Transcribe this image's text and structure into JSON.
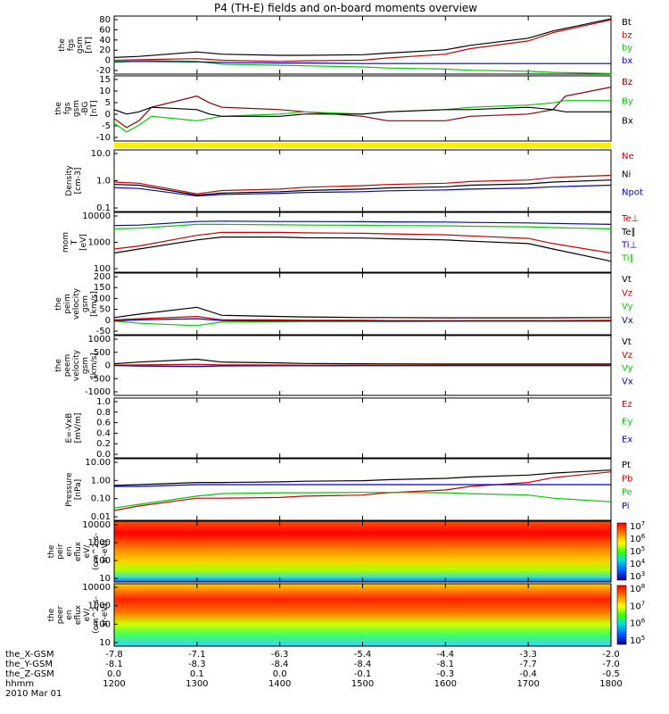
{
  "title": "P4 (TH-E) fields and on-board moments overview",
  "colors": {
    "black": "#000000",
    "red": "#cc0000",
    "green": "#00cc00",
    "blue": "#0000cc",
    "yellow": "#ffee00",
    "darkred": "#8b0000"
  },
  "chart_data": [
    {
      "id": "fgs-gsm",
      "type": "line",
      "ylabel": [
        "the",
        "fgs",
        "gsm",
        "[nT]"
      ],
      "yticks": [
        "80",
        "60",
        "40",
        "20",
        "0",
        "-20"
      ],
      "ylim": [
        -20,
        85
      ],
      "x": [
        1200,
        1230,
        1300,
        1330,
        1400,
        1430,
        1500,
        1530,
        1600,
        1630,
        1700,
        1730,
        1800
      ],
      "series": [
        {
          "name": "Bt",
          "color": "#000000",
          "values": [
            10,
            12,
            20,
            16,
            14,
            14,
            15,
            18,
            24,
            32,
            45,
            58,
            80
          ]
        },
        {
          "name": "bz",
          "color": "#cc0000",
          "values": [
            5,
            6,
            8,
            5,
            3,
            4,
            5,
            9,
            16,
            26,
            40,
            55,
            78
          ]
        },
        {
          "name": "by",
          "color": "#00cc00",
          "values": [
            4,
            5,
            3,
            -2,
            -4,
            -5,
            -7,
            -9,
            -11,
            -13,
            -15,
            -17,
            -19
          ]
        },
        {
          "name": "bx",
          "color": "#0000cc",
          "values": [
            2,
            3,
            2,
            1,
            0,
            0,
            -1,
            -1,
            -1,
            -1,
            -1,
            -1,
            -1
          ]
        }
      ]
    },
    {
      "id": "fgs-gsm-zoom",
      "type": "line",
      "ylabel": [
        "the",
        "fgs",
        "gsm",
        "-BG",
        "[nT]"
      ],
      "yticks": [
        "15",
        "10",
        "5",
        "0",
        "-5",
        "-10"
      ],
      "ylim": [
        -12,
        17
      ],
      "x": [
        1200,
        1215,
        1230,
        1245,
        1300,
        1315,
        1330,
        1400,
        1430,
        1500,
        1530,
        1600,
        1630,
        1700,
        1730,
        1745,
        1800
      ],
      "series": [
        {
          "name": "Bz",
          "color": "#8b0000",
          "values": [
            -2,
            -6,
            -3,
            3,
            8,
            5,
            3,
            2,
            1,
            -1,
            -3,
            -3,
            -1,
            0,
            2,
            8,
            12
          ]
        },
        {
          "name": "By",
          "color": "#00cc00",
          "values": [
            -4,
            -8,
            -5,
            -1,
            -3,
            -2,
            -1,
            0,
            1,
            0,
            1,
            2,
            3,
            4,
            5,
            6,
            6
          ]
        },
        {
          "name": "Bx",
          "color": "#000000",
          "values": [
            2,
            0,
            1,
            3,
            2,
            0,
            -1,
            -1,
            0,
            0,
            1,
            2,
            2,
            3,
            2,
            1,
            1
          ]
        }
      ]
    },
    {
      "id": "density",
      "type": "line",
      "log": true,
      "ylabel": [
        "Density",
        "[cm-3]"
      ],
      "yticks": [
        "10.0",
        "1.0",
        "0.1"
      ],
      "ylim": [
        0.1,
        15
      ],
      "x": [
        1200,
        1230,
        1300,
        1330,
        1400,
        1430,
        1500,
        1530,
        1600,
        1630,
        1700,
        1730,
        1800
      ],
      "series": [
        {
          "name": "Ne",
          "color": "#cc0000",
          "values": [
            1.1,
            1.0,
            0.42,
            0.55,
            0.62,
            0.72,
            0.82,
            0.9,
            1.0,
            1.15,
            1.3,
            1.6,
            1.9
          ]
        },
        {
          "name": "Ni",
          "color": "#000000",
          "values": [
            0.9,
            0.85,
            0.38,
            0.45,
            0.5,
            0.55,
            0.62,
            0.68,
            0.75,
            0.85,
            0.95,
            1.1,
            1.3
          ]
        },
        {
          "name": "Npot",
          "color": "#0000cc",
          "values": [
            0.7,
            0.65,
            0.35,
            0.4,
            0.44,
            0.47,
            0.5,
            0.54,
            0.58,
            0.62,
            0.68,
            0.75,
            0.85
          ]
        }
      ]
    },
    {
      "id": "temperature",
      "type": "line",
      "log": true,
      "ylabel": [
        "mom",
        "T",
        "[eV]"
      ],
      "yticks": [
        "10000",
        "1000",
        "100"
      ],
      "ylim": [
        100,
        15000
      ],
      "x": [
        1200,
        1230,
        1300,
        1330,
        1400,
        1430,
        1500,
        1530,
        1600,
        1630,
        1700,
        1730,
        1800
      ],
      "series": [
        {
          "name": "Te⊥",
          "color": "#cc0000",
          "values": [
            700,
            900,
            2200,
            2800,
            2800,
            2700,
            2600,
            2500,
            2300,
            2100,
            1700,
            1100,
            500
          ]
        },
        {
          "name": "Te∥",
          "color": "#000000",
          "values": [
            500,
            700,
            1500,
            1900,
            1900,
            1800,
            1750,
            1650,
            1500,
            1350,
            1100,
            700,
            250
          ]
        },
        {
          "name": "Ti⊥",
          "color": "#0000cc",
          "values": [
            5000,
            5200,
            7000,
            7200,
            7000,
            7000,
            6900,
            6800,
            6700,
            6500,
            6200,
            6000,
            5500
          ]
        },
        {
          "name": "Ti∥",
          "color": "#00cc00",
          "values": [
            3800,
            4000,
            5500,
            5500,
            5300,
            5200,
            5100,
            5000,
            4900,
            4700,
            4500,
            4200,
            3800
          ]
        }
      ]
    },
    {
      "id": "peim-velocity",
      "type": "line",
      "ylabel": [
        "the",
        "peim",
        "velocity",
        "gsm",
        "[km/s]"
      ],
      "yticks": [
        "200",
        "150",
        "100",
        "50",
        "0",
        "-50"
      ],
      "ylim": [
        -60,
        210
      ],
      "x": [
        1200,
        1230,
        1300,
        1330,
        1400,
        1430,
        1500,
        1530,
        1600,
        1630,
        1700,
        1730,
        1800
      ],
      "series": [
        {
          "name": "Vt",
          "color": "#000000",
          "values": [
            15,
            30,
            60,
            25,
            20,
            18,
            15,
            15,
            14,
            14,
            14,
            14,
            15
          ]
        },
        {
          "name": "Vz",
          "color": "#cc0000",
          "values": [
            5,
            10,
            20,
            5,
            5,
            3,
            3,
            2,
            2,
            2,
            2,
            2,
            3
          ]
        },
        {
          "name": "Vy",
          "color": "#00cc00",
          "values": [
            0,
            -10,
            -20,
            -5,
            -3,
            -2,
            -2,
            -2,
            -1,
            -1,
            -1,
            -1,
            -1
          ]
        },
        {
          "name": "Vx",
          "color": "#0000cc",
          "values": [
            0,
            5,
            10,
            2,
            0,
            0,
            0,
            -1,
            -1,
            0,
            0,
            0,
            0
          ]
        }
      ]
    },
    {
      "id": "peem-velocity",
      "type": "line",
      "ylabel": [
        "the",
        "peem",
        "velocity",
        "gsm",
        "[km/s]"
      ],
      "yticks": [
        "1000",
        "500",
        "0",
        "-500",
        "-1000"
      ],
      "ylim": [
        -1050,
        1050
      ],
      "x": [
        1200,
        1230,
        1300,
        1330,
        1400,
        1430,
        1500,
        1530,
        1600,
        1630,
        1700,
        1730,
        1800
      ],
      "series": [
        {
          "name": "Vt",
          "color": "#000000",
          "values": [
            60,
            120,
            220,
            120,
            90,
            70,
            60,
            55,
            50,
            50,
            50,
            50,
            50
          ]
        },
        {
          "name": "Vz",
          "color": "#cc0000",
          "values": [
            10,
            20,
            40,
            20,
            15,
            10,
            10,
            10,
            10,
            10,
            10,
            10,
            10
          ]
        },
        {
          "name": "Vy",
          "color": "#00cc00",
          "values": [
            0,
            -10,
            -20,
            -10,
            -5,
            -5,
            -5,
            -5,
            -5,
            -5,
            -5,
            -5,
            -5
          ]
        },
        {
          "name": "Vx",
          "color": "#0000cc",
          "values": [
            0,
            -20,
            -40,
            -15,
            -10,
            -8,
            -6,
            -5,
            -5,
            -5,
            -5,
            -5,
            -5
          ]
        }
      ]
    },
    {
      "id": "efield",
      "type": "line",
      "ylabel": [
        "E=-VxB",
        "[mV/m]"
      ],
      "yticks": [
        "1.0",
        "0.8",
        "0.6",
        "0.4",
        "0.2",
        "0.0"
      ],
      "ylim": [
        0,
        1
      ],
      "x": [],
      "series": [
        {
          "name": "Ez",
          "color": "#cc0000",
          "values": []
        },
        {
          "name": "Ey",
          "color": "#00cc00",
          "values": []
        },
        {
          "name": "Ex",
          "color": "#0000cc",
          "values": []
        }
      ]
    },
    {
      "id": "pressure",
      "type": "line",
      "log": true,
      "ylabel": [
        "Pressure",
        "[nPa]"
      ],
      "yticks": [
        "10.00",
        "1.00",
        "0.10",
        "0.01"
      ],
      "ylim": [
        0.01,
        10
      ],
      "x": [
        1200,
        1230,
        1300,
        1330,
        1400,
        1430,
        1500,
        1530,
        1600,
        1630,
        1700,
        1730,
        1800
      ],
      "series": [
        {
          "name": "Pt",
          "color": "#000000",
          "values": [
            0.5,
            0.55,
            0.7,
            0.7,
            0.75,
            0.8,
            0.85,
            0.95,
            1.1,
            1.3,
            1.6,
            2.0,
            2.8
          ]
        },
        {
          "name": "Pb",
          "color": "#cc0000",
          "values": [
            0.03,
            0.05,
            0.12,
            0.12,
            0.13,
            0.15,
            0.17,
            0.22,
            0.3,
            0.45,
            0.7,
            1.2,
            2.3
          ]
        },
        {
          "name": "Pe",
          "color": "#00cc00",
          "values": [
            0.04,
            0.06,
            0.15,
            0.2,
            0.22,
            0.22,
            0.23,
            0.23,
            0.22,
            0.2,
            0.17,
            0.12,
            0.08
          ]
        },
        {
          "name": "Pi",
          "color": "#0000cc",
          "values": [
            0.45,
            0.45,
            0.55,
            0.55,
            0.55,
            0.55,
            0.55,
            0.55,
            0.55,
            0.55,
            0.55,
            0.55,
            0.55
          ]
        }
      ]
    },
    {
      "id": "peir-spectrogram",
      "type": "heatmap",
      "ylabel": [
        "the",
        "peir",
        "en",
        "eflux",
        "eV/",
        "(cm^2-s-",
        "sr-eV)"
      ],
      "yticks": [
        "10000",
        "1000",
        "100",
        "10"
      ],
      "colorbar_ticks": [
        "10^7",
        "10^6",
        "10^5",
        "10^4",
        "10^3"
      ]
    },
    {
      "id": "peer-spectrogram",
      "type": "heatmap",
      "ylabel": [
        "the",
        "peer",
        "en",
        "eflux",
        "eV/",
        "(cm^2-s-",
        "sr-eV)"
      ],
      "yticks": [
        "10000",
        "1000",
        "100",
        "10"
      ],
      "colorbar_ticks": [
        "10^8",
        "10^7",
        "10^6",
        "10^5"
      ]
    }
  ],
  "xaxis": {
    "rows": [
      {
        "label": "the_X-GSM",
        "values": [
          "-7.8",
          "-7.1",
          "-6.3",
          "-5.4",
          "-4.4",
          "-3.3",
          "-2.0"
        ]
      },
      {
        "label": "the_Y-GSM",
        "values": [
          "-8.1",
          "-8.3",
          "-8.4",
          "-8.4",
          "-8.1",
          "-7.7",
          "-7.0"
        ]
      },
      {
        "label": "the_Z-GSM",
        "values": [
          "0.0",
          "0.1",
          "0.0",
          "-0.1",
          "-0.3",
          "-0.4",
          "-0.5"
        ]
      },
      {
        "label": "hhmm",
        "values": [
          "1200",
          "1300",
          "1400",
          "1500",
          "1600",
          "1700",
          "1800"
        ]
      }
    ],
    "date": "2010 Mar 01"
  }
}
